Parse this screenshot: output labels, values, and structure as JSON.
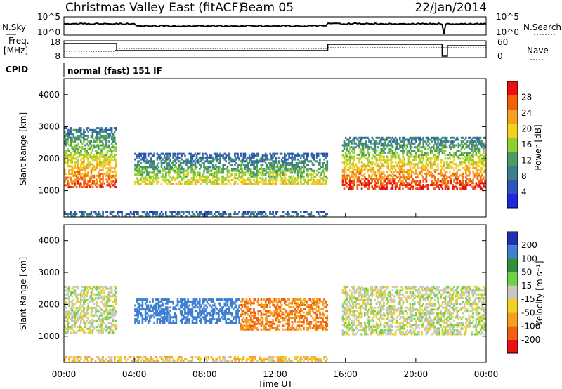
{
  "header": {
    "station": "Christmas Valley East (fitACF)",
    "beam": "Beam 05",
    "date": "22/Jan/2014"
  },
  "nsky_panel": {
    "left_label": "N.Sky",
    "right_label": "N.Search",
    "left_ticks": [
      "10^5",
      "10^0"
    ],
    "right_ticks": [
      "10^5",
      "10^0"
    ]
  },
  "freq_panel": {
    "left_label_1": "Freq.",
    "left_label_2": "[MHz]",
    "left_ticks": [
      "18",
      "8"
    ],
    "right_ticks": [
      "60",
      "0"
    ],
    "right_label": "Nave"
  },
  "cpid": {
    "label": "CPID",
    "mode": "normal (fast) 151 IF"
  },
  "x_axis": {
    "label": "Time UT",
    "ticks": [
      "00:00",
      "04:00",
      "08:00",
      "12:00",
      "16:00",
      "20:00",
      "00:00"
    ]
  },
  "colors": {
    "power": [
      "#1f27e0",
      "#2f55b8",
      "#3b7e8c",
      "#4f9a64",
      "#8fd030",
      "#f0d020",
      "#f5a020",
      "#f06010",
      "#e81010"
    ],
    "velocity": [
      "#2030b0",
      "#3f7fd0",
      "#2f8f3a",
      "#6fd04a",
      "#c8c8c0",
      "#f0d020",
      "#f5a020",
      "#f06010",
      "#e81010"
    ]
  },
  "chart_data": [
    {
      "type": "heatmap",
      "title": "Power",
      "ylabel": "Slant Range [km]",
      "xlabel": "Time UT",
      "x_range": [
        "00:00",
        "24:00"
      ],
      "ylim": [
        180,
        4500
      ],
      "y_ticks": [
        1000,
        2000,
        3000,
        4000
      ],
      "colorbar": {
        "label": "Power [dB]",
        "ticks": [
          4,
          8,
          12,
          16,
          20,
          24,
          28
        ],
        "range": [
          0,
          32
        ]
      },
      "features": [
        {
          "t_start": 0.0,
          "t_end": 3.0,
          "range_low_km": 1100,
          "range_high_km": 3000,
          "peak_dB": 28
        },
        {
          "t_start": 4.0,
          "t_end": 15.0,
          "range_low_km": 1200,
          "range_high_km": 2200,
          "peak_dB": 20
        },
        {
          "t_start": 15.8,
          "t_end": 24.0,
          "range_low_km": 1050,
          "range_high_km": 2700,
          "peak_dB": 30
        },
        {
          "t_start": 0.0,
          "t_end": 15.0,
          "range_low_km": 200,
          "range_high_km": 400,
          "peak_dB": 10
        }
      ]
    },
    {
      "type": "heatmap",
      "title": "Velocity",
      "ylabel": "Slant Range [km]",
      "xlabel": "Time UT",
      "x_range": [
        "00:00",
        "24:00"
      ],
      "ylim": [
        180,
        4500
      ],
      "y_ticks": [
        1000,
        2000,
        3000,
        4000
      ],
      "colorbar": {
        "label": "Velocity [m s⁻¹]",
        "ticks": [
          "200",
          "100",
          "50",
          "15",
          "-15",
          "-50",
          "-100",
          "-200"
        ],
        "range": [
          -250,
          250
        ]
      },
      "features": [
        {
          "t_start": 0.0,
          "t_end": 3.0,
          "range_low_km": 1100,
          "range_high_km": 2600,
          "velocity_ms": 0
        },
        {
          "t_start": 4.0,
          "t_end": 10.0,
          "range_low_km": 1400,
          "range_high_km": 2200,
          "velocity_ms": 110
        },
        {
          "t_start": 10.0,
          "t_end": 15.0,
          "range_low_km": 1200,
          "range_high_km": 2200,
          "velocity_ms": -70
        },
        {
          "t_start": 15.8,
          "t_end": 24.0,
          "range_low_km": 1050,
          "range_high_km": 2600,
          "velocity_ms": 0
        },
        {
          "t_start": 0.0,
          "t_end": 15.0,
          "range_low_km": 200,
          "range_high_km": 400,
          "velocity_ms": -30
        }
      ]
    }
  ]
}
